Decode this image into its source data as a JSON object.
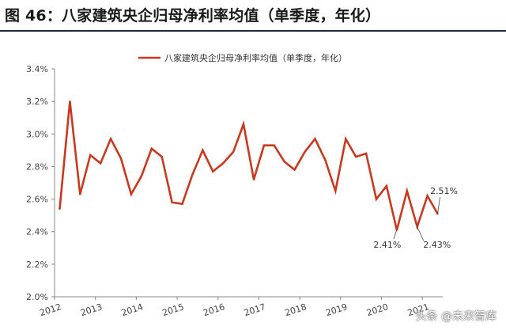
{
  "figure_title": "图 46：八家建筑央企归母净利率均值（单季度，年化）",
  "watermark": "头条 @未来智库",
  "chart_data": {
    "type": "line",
    "title": "",
    "xlabel": "",
    "ylabel": "",
    "ylim": [
      0.02,
      0.034
    ],
    "y_ticks": [
      "2.0%",
      "2.2%",
      "2.4%",
      "2.6%",
      "2.8%",
      "3.0%",
      "3.2%",
      "3.4%"
    ],
    "y_tick_values": [
      0.02,
      0.022,
      0.024,
      0.026,
      0.028,
      0.03,
      0.032,
      0.034
    ],
    "x_ticks": [
      "2012",
      "2013",
      "2014",
      "2015",
      "2016",
      "2017",
      "2018",
      "2019",
      "2020",
      "2021"
    ],
    "x": [
      "2012Q1",
      "2012Q2",
      "2012Q3",
      "2012Q4",
      "2013Q1",
      "2013Q2",
      "2013Q3",
      "2013Q4",
      "2014Q1",
      "2014Q2",
      "2014Q3",
      "2014Q4",
      "2015Q1",
      "2015Q2",
      "2015Q3",
      "2015Q4",
      "2016Q1",
      "2016Q2",
      "2016Q3",
      "2016Q4",
      "2017Q1",
      "2017Q2",
      "2017Q3",
      "2017Q4",
      "2018Q1",
      "2018Q2",
      "2018Q3",
      "2018Q4",
      "2019Q1",
      "2019Q2",
      "2019Q3",
      "2019Q4",
      "2020Q1",
      "2020Q2",
      "2020Q3",
      "2020Q4",
      "2021Q1",
      "2021Q2"
    ],
    "series": [
      {
        "name": "八家建筑央企归母净利率均值（单季度，年化）",
        "color": "#c8391f",
        "values": [
          0.0254,
          0.032,
          0.0263,
          0.0287,
          0.0282,
          0.0297,
          0.0285,
          0.0263,
          0.0274,
          0.0291,
          0.0286,
          0.0258,
          0.0257,
          0.0275,
          0.029,
          0.0277,
          0.0282,
          0.0289,
          0.0306,
          0.0272,
          0.0293,
          0.0293,
          0.0283,
          0.0278,
          0.0289,
          0.0297,
          0.0284,
          0.0265,
          0.0297,
          0.0286,
          0.0288,
          0.026,
          0.0268,
          0.0241,
          0.0265,
          0.0243,
          0.0262,
          0.0251
        ]
      }
    ],
    "annotations": [
      {
        "text": "2.41%",
        "x_index": 33
      },
      {
        "text": "2.43%",
        "x_index": 35
      },
      {
        "text": "2.51%",
        "x_index": 37
      }
    ],
    "grid": false,
    "legend": "top-center"
  }
}
